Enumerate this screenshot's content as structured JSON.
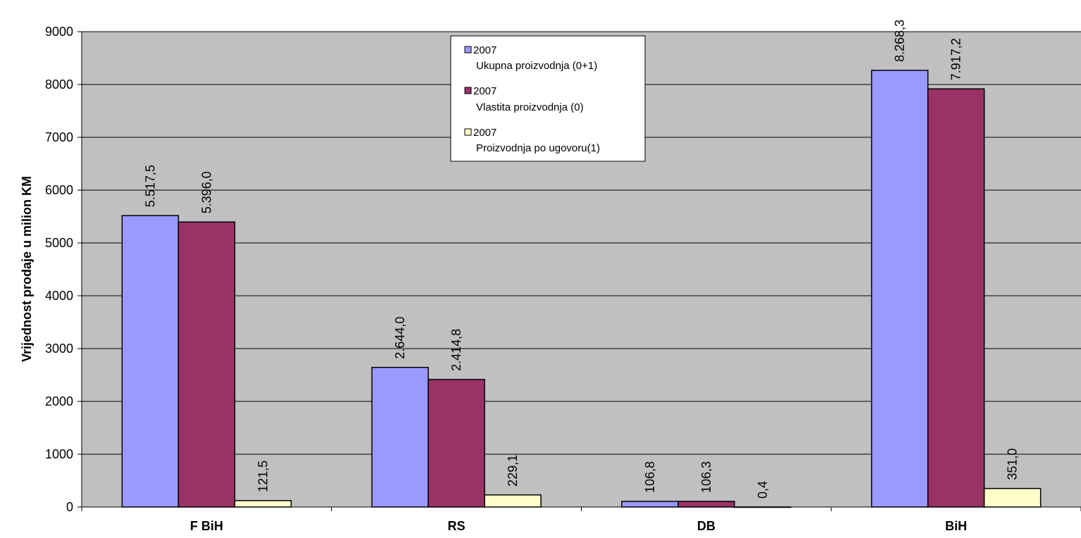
{
  "chart_data": {
    "type": "bar",
    "ylabel": "Vrijednost prodaje u milion KM",
    "ylim": [
      0,
      9000
    ],
    "yticks": [
      "0",
      "1000",
      "2000",
      "3000",
      "4000",
      "5000",
      "6000",
      "7000",
      "8000",
      "9000"
    ],
    "grid": true,
    "legend_position": "top-center",
    "plot_background": "#C0C0C0",
    "categories": [
      "F BiH",
      "RS",
      "DB",
      "BiH"
    ],
    "series": [
      {
        "name_line1": "2007",
        "name_line2": "Ukupna proizvodnja (0+1)",
        "color": "#9999FF",
        "values": [
          5517.5,
          2644.0,
          106.8,
          8268.3
        ],
        "labels": [
          "5.517,5",
          "2.644,0",
          "106,8",
          "8.268,3"
        ]
      },
      {
        "name_line1": "2007",
        "name_line2": "Vlastita proizvodnja (0)",
        "color": "#993366",
        "values": [
          5396.0,
          2414.8,
          106.3,
          7917.2
        ],
        "labels": [
          "5.396,0",
          "2.414,8",
          "106,3",
          "7.917,2"
        ]
      },
      {
        "name_line1": "2007",
        "name_line2": "Proizvodnja po ugovoru(1)",
        "color": "#FFFFCC",
        "values": [
          121.5,
          229.1,
          0.4,
          351.0
        ],
        "labels": [
          "121,5",
          "229,1",
          "0,4",
          "351,0"
        ]
      }
    ]
  }
}
